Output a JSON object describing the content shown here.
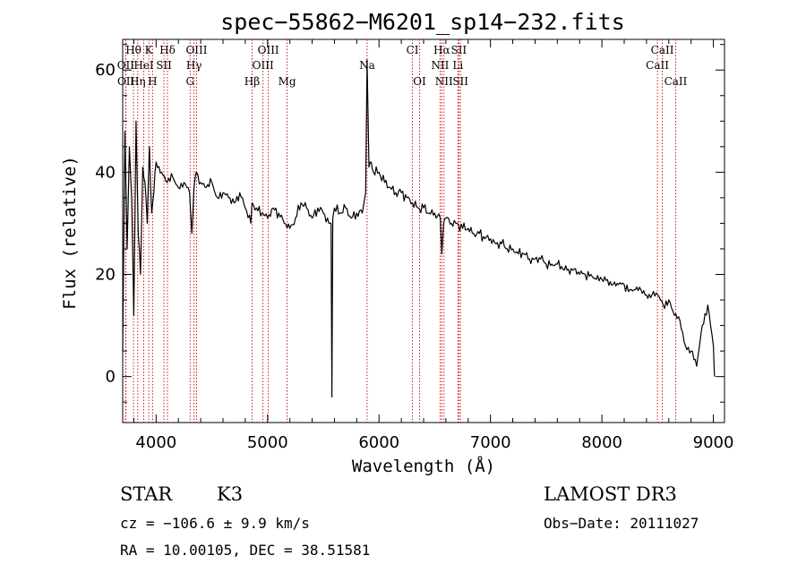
{
  "chart_data": {
    "type": "line",
    "title": "spec−55862−M6201_sp14−232.fits",
    "xlabel": "Wavelength (Å)",
    "ylabel": "Flux (relative)",
    "xlim": [
      3700,
      9100
    ],
    "ylim": [
      -9,
      66
    ],
    "x_ticks": [
      4000,
      5000,
      6000,
      7000,
      8000,
      9000
    ],
    "y_ticks": [
      0,
      20,
      40,
      60
    ],
    "grid": false,
    "series": [
      {
        "name": "spectrum",
        "color": "#000000",
        "x": [
          3700,
          3720,
          3740,
          3760,
          3780,
          3800,
          3820,
          3840,
          3860,
          3880,
          3900,
          3920,
          3940,
          3960,
          3980,
          4000,
          4050,
          4100,
          4150,
          4200,
          4250,
          4300,
          4320,
          4340,
          4360,
          4400,
          4450,
          4500,
          4550,
          4600,
          4650,
          4700,
          4750,
          4800,
          4850,
          4860,
          4900,
          4950,
          5000,
          5050,
          5100,
          5150,
          5200,
          5250,
          5300,
          5350,
          5400,
          5450,
          5500,
          5550,
          5570,
          5577,
          5585,
          5600,
          5650,
          5700,
          5750,
          5800,
          5850,
          5880,
          5893,
          5910,
          5930,
          5950,
          6000,
          6050,
          6100,
          6150,
          6200,
          6250,
          6300,
          6350,
          6400,
          6450,
          6500,
          6550,
          6563,
          6580,
          6600,
          6650,
          6700,
          6750,
          6800,
          6850,
          6900,
          6950,
          7000,
          7050,
          7100,
          7150,
          7200,
          7250,
          7300,
          7350,
          7400,
          7450,
          7500,
          7550,
          7600,
          7650,
          7700,
          7750,
          7800,
          7850,
          7900,
          7950,
          8000,
          8050,
          8100,
          8150,
          8200,
          8250,
          8300,
          8350,
          8400,
          8450,
          8500,
          8550,
          8600,
          8650,
          8700,
          8750,
          8800,
          8850,
          8900,
          8950,
          9000,
          9010
        ],
        "values": [
          5,
          48,
          25,
          45,
          35,
          12,
          50,
          28,
          20,
          41,
          38,
          30,
          45,
          32,
          36,
          42,
          40,
          38,
          39,
          37,
          38,
          36,
          28,
          37,
          40,
          38,
          37,
          38,
          35,
          36,
          35,
          34,
          36,
          33,
          30,
          34,
          33,
          32,
          31,
          33,
          32,
          30,
          29,
          31,
          34,
          33,
          31,
          33,
          32,
          30,
          30,
          -4,
          31,
          33,
          32,
          33,
          31,
          32,
          32,
          36,
          62,
          41,
          42,
          40,
          40,
          38,
          37,
          36,
          36,
          35,
          34,
          33,
          33,
          32,
          32,
          31,
          24,
          30,
          31,
          30,
          30,
          29,
          29,
          28,
          28,
          27,
          27,
          26,
          26,
          25,
          25,
          24,
          24,
          23,
          23,
          23,
          22,
          22,
          22,
          21,
          21,
          21,
          20,
          20,
          20,
          19,
          19,
          19,
          18,
          18,
          18,
          17,
          17,
          17,
          16,
          16,
          16,
          14,
          15,
          12,
          11,
          6,
          5,
          2,
          10,
          14,
          6,
          0
        ]
      }
    ],
    "spectral_lines": [
      {
        "label": "Hθ",
        "wavelength": 3797,
        "row": 0
      },
      {
        "label": "K",
        "wavelength": 3934,
        "row": 0
      },
      {
        "label": "Hδ",
        "wavelength": 4102,
        "row": 0
      },
      {
        "label": "OIII",
        "wavelength": 4363,
        "row": 0
      },
      {
        "label": "OIII",
        "wavelength": 5007,
        "row": 0
      },
      {
        "label": "CI",
        "wavelength": 6300,
        "row": 0
      },
      {
        "label": "Hα",
        "wavelength": 6563,
        "row": 0
      },
      {
        "label": "SII",
        "wavelength": 6716,
        "row": 0
      },
      {
        "label": "CaII",
        "wavelength": 8542,
        "row": 0
      },
      {
        "label": "OII",
        "wavelength": 3727,
        "row": 1
      },
      {
        "label": "HeI",
        "wavelength": 3889,
        "row": 1
      },
      {
        "label": "SII",
        "wavelength": 4070,
        "row": 1
      },
      {
        "label": "Hγ",
        "wavelength": 4340,
        "row": 1
      },
      {
        "label": "OIII",
        "wavelength": 4959,
        "row": 1
      },
      {
        "label": "Na",
        "wavelength": 5893,
        "row": 1
      },
      {
        "label": "NII",
        "wavelength": 6548,
        "row": 1
      },
      {
        "label": "Li",
        "wavelength": 6708,
        "row": 1
      },
      {
        "label": "CaII",
        "wavelength": 8498,
        "row": 1
      },
      {
        "label": "OII",
        "wavelength": 3729,
        "row": 2
      },
      {
        "label": "Hη",
        "wavelength": 3835,
        "row": 2
      },
      {
        "label": "H",
        "wavelength": 3968,
        "row": 2
      },
      {
        "label": "G",
        "wavelength": 4305,
        "row": 2
      },
      {
        "label": "Hβ",
        "wavelength": 4861,
        "row": 2
      },
      {
        "label": "Mg",
        "wavelength": 5175,
        "row": 2
      },
      {
        "label": "OI",
        "wavelength": 6364,
        "row": 2
      },
      {
        "label": "NII",
        "wavelength": 6583,
        "row": 2
      },
      {
        "label": "SII",
        "wavelength": 6731,
        "row": 2
      },
      {
        "label": "CaII",
        "wavelength": 8662,
        "row": 2
      }
    ],
    "line_marker_color": "#cc0000"
  },
  "info": {
    "object_class": "STAR",
    "subclass": "K3",
    "survey": "LAMOST DR3",
    "redshift": "cz = −106.6 ± 9.9 km/s",
    "obs_date": "Obs−Date: 20111027",
    "coordinates": "RA =  10.00105, DEC =  38.51581"
  }
}
